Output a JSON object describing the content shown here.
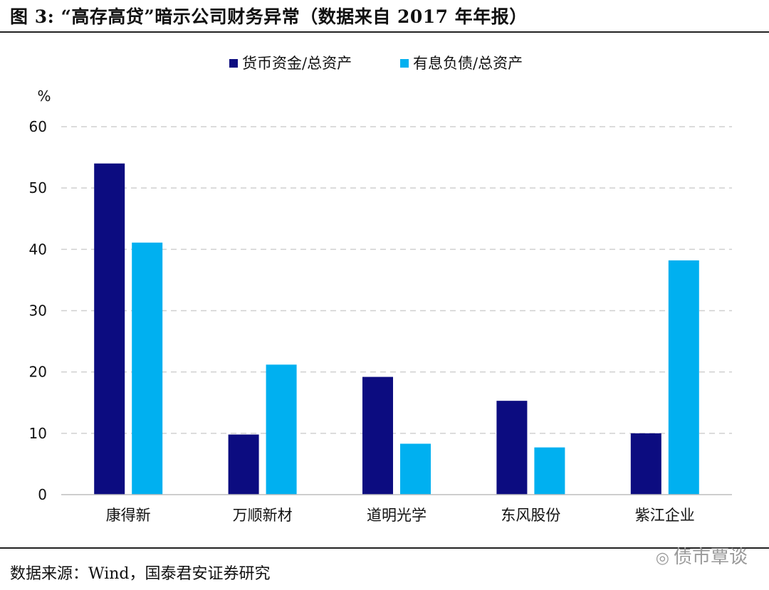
{
  "figure": {
    "title": "图 3: “高存高贷”暗示公司财务异常（数据来自 2017 年年报）",
    "source": "数据来源：Wind，国泰君安证券研究",
    "watermark": "债市覃谈",
    "watermark_icon": "wechat-icon"
  },
  "chart_data": {
    "type": "bar",
    "title": "",
    "xlabel": "",
    "ylabel": "%",
    "ylim": [
      0,
      60
    ],
    "yticks": [
      0,
      10,
      20,
      30,
      40,
      50,
      60
    ],
    "grid": true,
    "legend_position": "top-center",
    "categories": [
      "康得新",
      "万顺新材",
      "道明光学",
      "东风股份",
      "紫江企业"
    ],
    "series": [
      {
        "name": "货币资金/总资产",
        "color": "#0c0c80",
        "values": [
          54,
          9.8,
          19.2,
          15.3,
          10.0
        ]
      },
      {
        "name": "有息负债/总资产",
        "color": "#00b0f0",
        "values": [
          41.1,
          21.2,
          8.3,
          7.7,
          38.2
        ]
      }
    ]
  }
}
